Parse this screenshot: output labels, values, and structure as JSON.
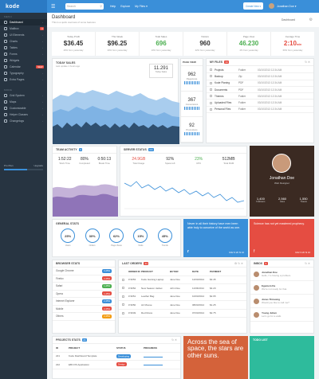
{
  "brand": "kode",
  "topbar": {
    "search_placeholder": "Search",
    "nav": [
      "Help",
      "Explore",
      "My Files ▾"
    ],
    "create_btn": "Create New ▾",
    "user": "Jonathan Doe ▾"
  },
  "sidebar": {
    "section1": "MENU",
    "items": [
      {
        "label": "Dashboard",
        "active": true
      },
      {
        "label": "Mailbox",
        "badge": "4"
      },
      {
        "label": "UI Elements"
      },
      {
        "label": "Charts"
      },
      {
        "label": "Tables"
      },
      {
        "label": "Forms"
      },
      {
        "label": "Widgets"
      },
      {
        "label": "Calendar",
        "badge": "NEW"
      },
      {
        "label": "Typography"
      },
      {
        "label": "Extra Pages"
      }
    ],
    "section2": "MORE",
    "items2": [
      {
        "label": "Grid System"
      },
      {
        "label": "Maps"
      },
      {
        "label": "Customizable"
      },
      {
        "label": "Helper Classes"
      },
      {
        "label": "Changelogs"
      }
    ],
    "proplan": {
      "label": "Pro Plan",
      "upgrade": "Upgrade",
      "progress": 0.6
    }
  },
  "page": {
    "title": "Dashboard",
    "subtitle": "This is a quick overview of some features",
    "crumb": "Dashboard"
  },
  "kpis": [
    {
      "label": "Today Profit",
      "value": "$36.45",
      "note": "40% from yesterday",
      "color": "n"
    },
    {
      "label": "This Week",
      "value": "$96.25",
      "note": "20% from yesterday",
      "color": "n"
    },
    {
      "label": "Total Sales",
      "value": "696",
      "note": "10% from yesterday",
      "color": "g"
    },
    {
      "label": "Visitors",
      "value": "960",
      "note": "42% from yesterday",
      "color": "n"
    },
    {
      "label": "Page View",
      "value": "46.230",
      "note": "4% from yesterday",
      "color": "g"
    },
    {
      "label": "Average Time",
      "value": "2:10",
      "value_suffix": "min",
      "note": "60% from yesterday",
      "color": "r"
    }
  ],
  "today_sales": {
    "title": "TODAY SALES",
    "sub": "Last update 1 hours ago",
    "value": "11.291",
    "value_label": "Today Sales"
  },
  "page_view": {
    "title": "PAGE VIEW",
    "items": [
      {
        "v": "962",
        "l": "Pageviews"
      },
      {
        "v": "367",
        "l": "Conversions"
      },
      {
        "v": "92",
        "l": "Promotions"
      }
    ]
  },
  "my_files": {
    "title": "MY FILES",
    "badge": "24",
    "files": [
      {
        "n": "Projects",
        "t": "Folder",
        "d": "03/10/2013 12:34 AM"
      },
      {
        "n": "Backup",
        "t": "Zip",
        "d": "03/10/2013 12:34 AM"
      },
      {
        "n": "Kode Planing",
        "t": "PDF",
        "d": "03/10/2013 12:34 AM"
      },
      {
        "n": "Documents",
        "t": "PDF",
        "d": "03/10/2013 12:34 AM"
      },
      {
        "n": "Themes",
        "t": "Folder",
        "d": "03/10/2013 12:34 AM"
      },
      {
        "n": "Uploaded Files",
        "t": "Folder",
        "d": "03/10/2013 12:34 AM"
      },
      {
        "n": "Personal Files",
        "t": "Folder",
        "d": "03/10/2013 12:34 AM"
      }
    ]
  },
  "team_activity": {
    "title": "TEAM ACTIVITY",
    "badge": "9",
    "stats": [
      {
        "v": "1:52:22",
        "l": "Work Time"
      },
      {
        "v": "80%",
        "l": "Completed"
      },
      {
        "v": "0:50:13",
        "l": "Break Time"
      }
    ]
  },
  "server_status": {
    "title": "SERVER STATUS",
    "badge": "ON",
    "stats": [
      {
        "v": "24.9GB",
        "l": "Total Usage",
        "c": "r"
      },
      {
        "v": "92%",
        "l": "Space left",
        "c": "n"
      },
      {
        "v": "23%",
        "l": "CPU",
        "c": "g"
      },
      {
        "v": "512MB",
        "l": "Total RAM",
        "c": "n"
      }
    ]
  },
  "profile": {
    "name": "Jonathan Doe",
    "role": "Web Designer",
    "stats": [
      {
        "v": "1,400",
        "l": "Followers"
      },
      {
        "v": "2,560",
        "l": "Likes"
      },
      {
        "v": "1,550",
        "l": "Tweets"
      }
    ]
  },
  "general_stats": {
    "title": "GENERAL STATS",
    "items": [
      {
        "v": "25%",
        "l": "Users"
      },
      {
        "v": "30%",
        "l": "Orders"
      },
      {
        "v": "62%",
        "l": "Page Views"
      },
      {
        "v": "15%",
        "l": "Visits"
      },
      {
        "v": "45%",
        "l": "Trends"
      }
    ]
  },
  "tweet1": {
    "text": "Never in all their history have men been able truly to conceive of the world as one.",
    "meta": "6/42 ♥ 20 ⇅ 10"
  },
  "tweet2": {
    "text": "Science has not yet mastered prophecy.",
    "meta": "6/42 ♥ 20 ⇅ 10"
  },
  "browser_stats": {
    "title": "BROWSER STATS",
    "rows": [
      {
        "n": "Google Chrome",
        "p": "3,45%",
        "c": "#3a8fd9"
      },
      {
        "n": "Firefox",
        "p": "2,45%",
        "c": "#e54d42"
      },
      {
        "n": "Safari",
        "p": "1,45%",
        "c": "#4caf50"
      },
      {
        "n": "Opera",
        "p": "1,45%",
        "c": "#e54d42"
      },
      {
        "n": "Internet Explorer",
        "p": "2,45%",
        "c": "#3a8fd9"
      },
      {
        "n": "Mobile",
        "p": "2,45%",
        "c": "#e54d42"
      },
      {
        "n": "Others",
        "p": "2,45%",
        "c": "#f39c12"
      }
    ]
  },
  "last_orders": {
    "title": "LAST ORDERS",
    "badge": "24",
    "headers": [
      "",
      "ORDER ID",
      "PRODUCT",
      "BUYER",
      "DATE",
      "PAYMENT"
    ],
    "rows": [
      [
        "",
        "# 9653",
        "Kode Gaming Laptop",
        "Jane Doe",
        "12/03/2014",
        "$3.45"
      ],
      [
        "",
        "# 9652",
        "New Season Jacket",
        "John Doe",
        "11/03/2014",
        "$4.20"
      ],
      [
        "",
        "# 9651",
        "Leather Bag",
        "Jane Doe",
        "10/03/2014",
        "$2.65"
      ],
      [
        "",
        "# 9650",
        "Air Mouse",
        "Jane Doe",
        "08/03/2014",
        "$1.25"
      ],
      [
        "",
        "# 9649",
        "Red Dress",
        "Jane Doe",
        "07/03/2014",
        "$2.75"
      ]
    ]
  },
  "inbox": {
    "title": "INBOX",
    "badge": "9",
    "msgs": [
      {
        "n": "Jonathan Doe",
        "m": "Hello, I'm having a problem."
      },
      {
        "n": "Egemem Ka",
        "m": "We're not ready for that."
      },
      {
        "n": "Jonas Thirasing",
        "m": "Would you like to call me?"
      },
      {
        "n": "Young Juhan",
        "m": "Let's go for a walk."
      }
    ]
  },
  "projects_stats": {
    "title": "PROJECTS STATS",
    "badge": "24",
    "headers": [
      "ID",
      "PROJECT",
      "STATUS",
      "PROGRESS"
    ],
    "rows": [
      [
        "221",
        "Kode Dashboard Template",
        "Developing"
      ],
      [
        "222",
        "EBI iOS Application",
        "Design"
      ]
    ]
  },
  "quote": {
    "text": "Across the sea of space, the stars are other suns."
  },
  "todo": {
    "title": "TODO LIST"
  }
}
